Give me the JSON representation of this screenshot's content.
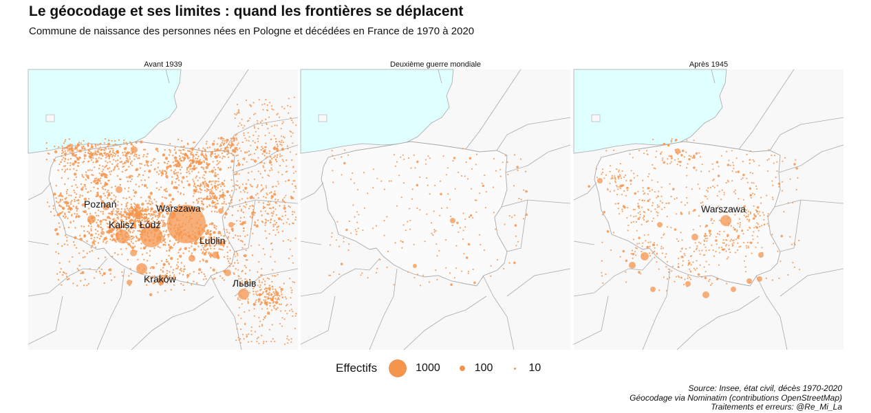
{
  "title": "Le géocodage et ses limites : quand les frontières se déplacent",
  "subtitle": "Commune de naissance des personnes nées en Pologne et décédées en France de 1970 à 2020",
  "panels": [
    {
      "label": "Avant 1939",
      "cities": [
        "Poznań",
        "Warszawa",
        "Kalisz",
        "Łódź",
        "Lublin",
        "Kraków",
        "Львів"
      ]
    },
    {
      "label": "Deuxième guerre mondiale",
      "cities": []
    },
    {
      "label": "Après 1945",
      "cities": [
        "Warszawa"
      ]
    }
  ],
  "legend": {
    "title": "Effectifs",
    "items": [
      {
        "label": "1000",
        "value": 1000
      },
      {
        "label": "100",
        "value": 100
      },
      {
        "label": "10",
        "value": 10
      }
    ]
  },
  "caption": [
    "Source: Insee, état civil, décès 1970-2020",
    "Géocodage via Nominatim (contributions OpenStreetMap)",
    "Traitements et erreurs: @Re_Mi_La"
  ],
  "colors": {
    "point": "#f5954d",
    "sea": "#e0ffff",
    "land": "#f7f7f7",
    "border": "#a8a8a8"
  }
}
